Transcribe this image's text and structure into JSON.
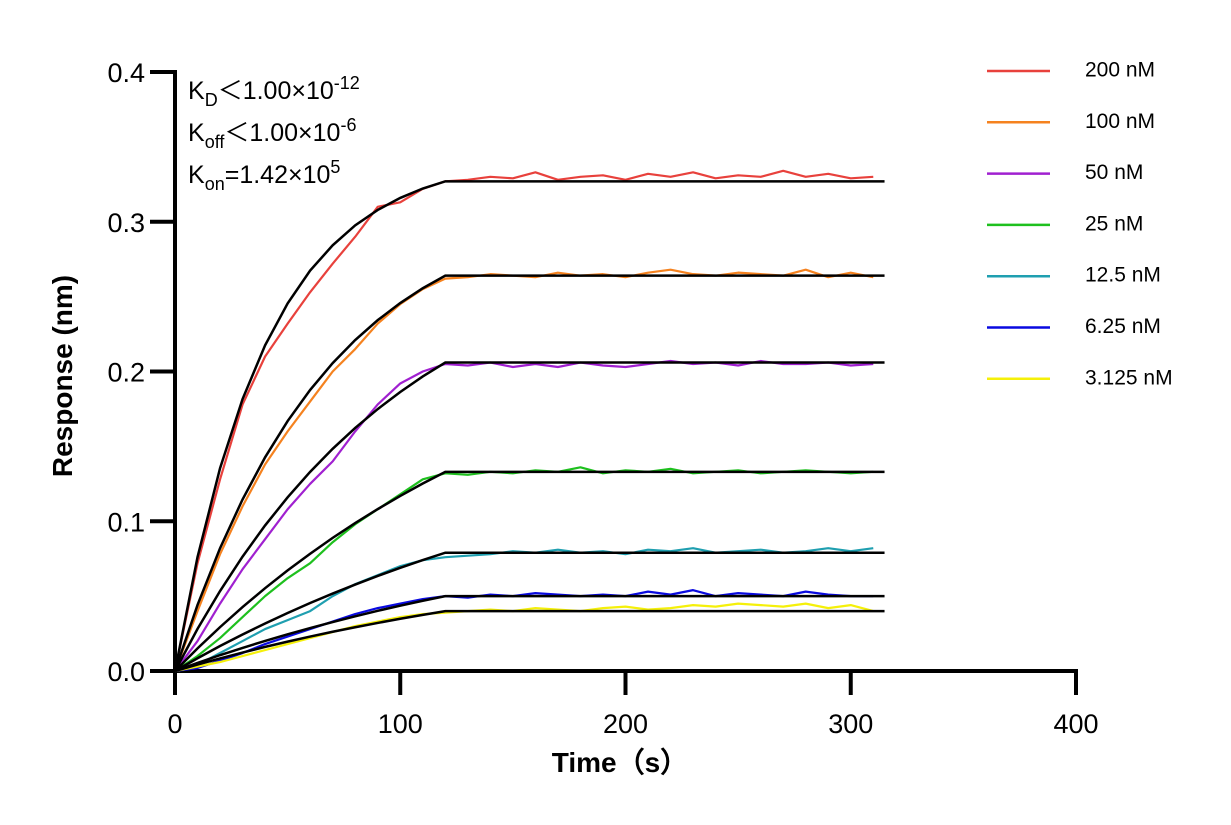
{
  "chart_data": {
    "type": "line",
    "annotations": [
      {
        "symbol": "K",
        "sub": "D",
        "text": "＜1.00×10",
        "sup": "-12"
      },
      {
        "symbol": "K",
        "sub": "off",
        "text": "＜1.00×10",
        "sup": "-6"
      },
      {
        "symbol": "K",
        "sub": "on",
        "text": "=1.42×10",
        "sup": "5"
      }
    ],
    "x_label": "Time（s）",
    "y_label": "Response (nm)",
    "xlim": [
      0,
      400
    ],
    "xticks": [
      0,
      100,
      200,
      300,
      400
    ],
    "ylim": [
      0,
      0.4
    ],
    "yticks": [
      {
        "value": 0,
        "label": "0.0"
      },
      0.1,
      0.2,
      0.3,
      0.4
    ],
    "legend": "right",
    "fit_color": "#000000",
    "x": [
      0,
      10,
      20,
      30,
      40,
      50,
      60,
      70,
      80,
      90,
      100,
      110,
      120,
      130,
      140,
      150,
      160,
      170,
      180,
      190,
      200,
      210,
      220,
      230,
      240,
      250,
      260,
      270,
      280,
      290,
      300,
      310
    ],
    "fit_x": [
      0,
      10,
      20,
      30,
      40,
      50,
      60,
      70,
      80,
      90,
      100,
      110,
      120,
      315
    ],
    "series": [
      {
        "name": "200 nM",
        "color": "#e8413c",
        "values": [
          0,
          0.072,
          0.128,
          0.178,
          0.21,
          0.232,
          0.253,
          0.272,
          0.29,
          0.31,
          0.313,
          0.322,
          0.327,
          0.328,
          0.33,
          0.329,
          0.333,
          0.328,
          0.33,
          0.331,
          0.328,
          0.332,
          0.33,
          0.333,
          0.329,
          0.331,
          0.33,
          0.334,
          0.33,
          0.332,
          0.329,
          0.33
        ],
        "fit": [
          0,
          0.0761,
          0.1354,
          0.1816,
          0.2175,
          0.2455,
          0.2674,
          0.2843,
          0.2976,
          0.3079,
          0.3159,
          0.3222,
          0.327,
          0.327
        ]
      },
      {
        "name": "100 nM",
        "color": "#f5821f",
        "values": [
          0,
          0.04,
          0.078,
          0.11,
          0.138,
          0.16,
          0.18,
          0.2,
          0.215,
          0.232,
          0.245,
          0.255,
          0.262,
          0.263,
          0.265,
          0.264,
          0.263,
          0.266,
          0.264,
          0.265,
          0.263,
          0.266,
          0.268,
          0.265,
          0.264,
          0.266,
          0.265,
          0.264,
          0.268,
          0.263,
          0.266,
          0.263
        ],
        "fit": [
          0,
          0.0441,
          0.082,
          0.1146,
          0.1427,
          0.1669,
          0.1877,
          0.2056,
          0.221,
          0.2343,
          0.2457,
          0.2556,
          0.264,
          0.264
        ]
      },
      {
        "name": "50 nM",
        "color": "#a020d0",
        "values": [
          0,
          0.02,
          0.045,
          0.068,
          0.088,
          0.108,
          0.125,
          0.14,
          0.16,
          0.178,
          0.192,
          0.2,
          0.205,
          0.204,
          0.206,
          0.203,
          0.205,
          0.203,
          0.206,
          0.204,
          0.203,
          0.205,
          0.207,
          0.205,
          0.206,
          0.204,
          0.207,
          0.205,
          0.205,
          0.206,
          0.204,
          0.205
        ],
        "fit": [
          0,
          0.0281,
          0.0534,
          0.0764,
          0.0972,
          0.116,
          0.133,
          0.1484,
          0.1623,
          0.1749,
          0.1863,
          0.1967,
          0.206,
          0.206
        ]
      },
      {
        "name": "25 nM",
        "color": "#1ec01e",
        "values": [
          0,
          0.01,
          0.022,
          0.036,
          0.05,
          0.062,
          0.072,
          0.086,
          0.098,
          0.108,
          0.118,
          0.128,
          0.132,
          0.131,
          0.133,
          0.132,
          0.134,
          0.133,
          0.136,
          0.132,
          0.134,
          0.133,
          0.135,
          0.132,
          0.133,
          0.134,
          0.132,
          0.133,
          0.134,
          0.133,
          0.132,
          0.133
        ],
        "fit": [
          0,
          0.0151,
          0.0293,
          0.0427,
          0.0553,
          0.0672,
          0.0783,
          0.0889,
          0.0988,
          0.1081,
          0.1169,
          0.1252,
          0.133,
          0.133
        ]
      },
      {
        "name": "12.5 nM",
        "color": "#1f9fb0",
        "values": [
          0,
          0.004,
          0.012,
          0.02,
          0.028,
          0.034,
          0.04,
          0.05,
          0.058,
          0.064,
          0.07,
          0.074,
          0.076,
          0.077,
          0.078,
          0.08,
          0.079,
          0.081,
          0.079,
          0.08,
          0.078,
          0.081,
          0.08,
          0.082,
          0.079,
          0.08,
          0.081,
          0.079,
          0.08,
          0.082,
          0.08,
          0.082
        ],
        "fit": [
          0,
          0.0085,
          0.0167,
          0.0244,
          0.0317,
          0.0387,
          0.0454,
          0.0517,
          0.0577,
          0.0635,
          0.0689,
          0.0741,
          0.079,
          0.079
        ]
      },
      {
        "name": "6.25 nM",
        "color": "#0a0ae0",
        "values": [
          0,
          0.002,
          0.007,
          0.012,
          0.018,
          0.023,
          0.028,
          0.033,
          0.038,
          0.042,
          0.045,
          0.048,
          0.05,
          0.049,
          0.051,
          0.05,
          0.052,
          0.051,
          0.05,
          0.051,
          0.05,
          0.053,
          0.051,
          0.054,
          0.05,
          0.052,
          0.051,
          0.05,
          0.053,
          0.051,
          0.05,
          0.05
        ],
        "fit": [
          0,
          0.0054,
          0.0106,
          0.0154,
          0.0201,
          0.0245,
          0.0287,
          0.0327,
          0.0365,
          0.0402,
          0.0436,
          0.0469,
          0.05,
          0.05
        ]
      },
      {
        "name": "3.125 nM",
        "color": "#f5f00a",
        "values": [
          0,
          0.003,
          0.006,
          0.01,
          0.014,
          0.018,
          0.022,
          0.026,
          0.03,
          0.033,
          0.036,
          0.038,
          0.039,
          0.04,
          0.041,
          0.04,
          0.042,
          0.041,
          0.04,
          0.042,
          0.043,
          0.041,
          0.042,
          0.044,
          0.043,
          0.045,
          0.044,
          0.043,
          0.045,
          0.042,
          0.044,
          0.04
        ],
        "fit": [
          0,
          0.0043,
          0.0084,
          0.0123,
          0.0161,
          0.0196,
          0.023,
          0.0262,
          0.0292,
          0.0321,
          0.0349,
          0.0375,
          0.04,
          0.04
        ]
      }
    ]
  }
}
